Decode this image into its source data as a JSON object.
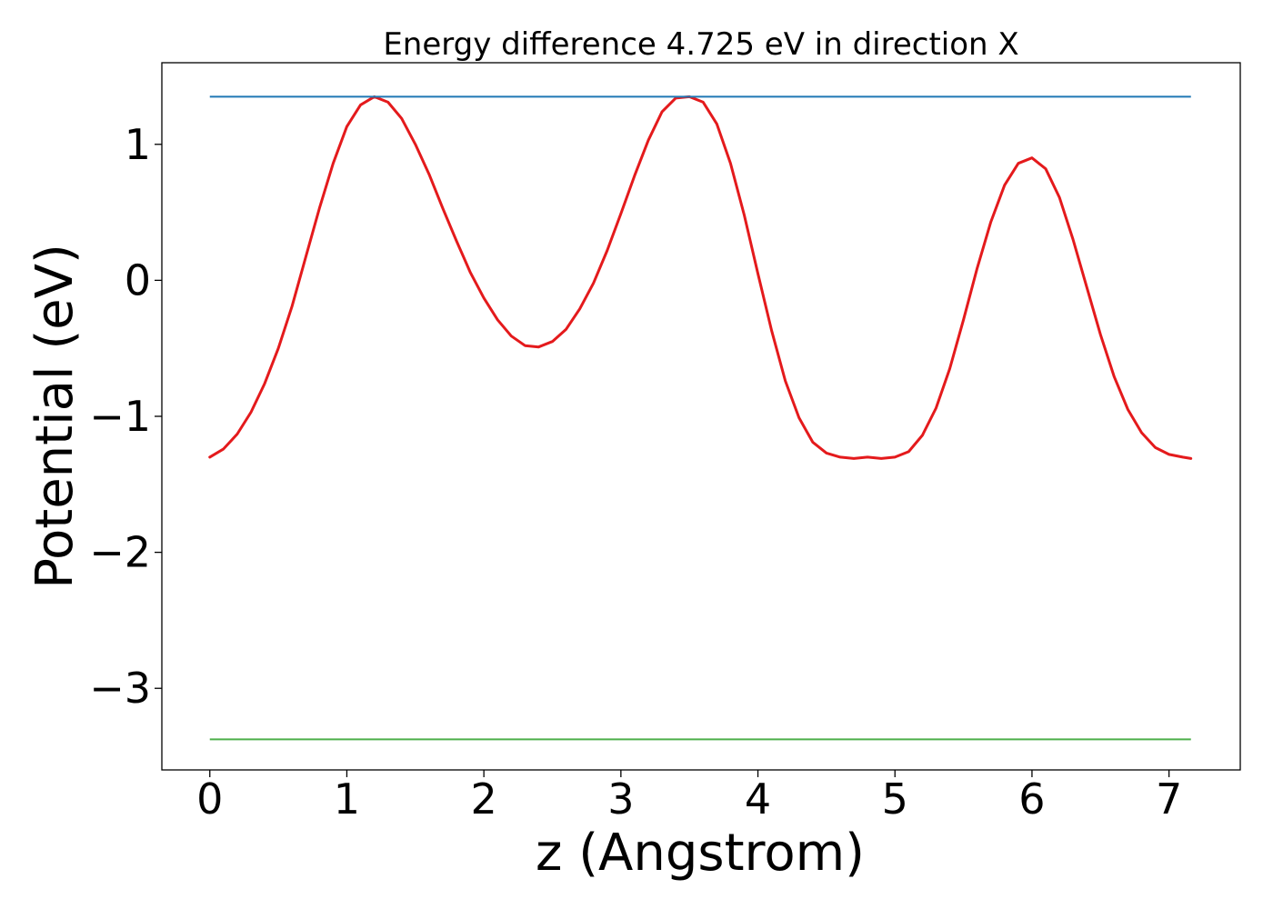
{
  "chart_data": {
    "type": "line",
    "title": "Energy difference 4.725 eV in direction X",
    "xlabel": "z (Angstrom)",
    "ylabel": "Potential (eV)",
    "xlim": [
      -0.35,
      7.52
    ],
    "ylim": [
      -3.6,
      1.6
    ],
    "xticks": [
      0,
      1,
      2,
      3,
      4,
      5,
      6,
      7
    ],
    "xtick_labels": [
      "0",
      "1",
      "2",
      "3",
      "4",
      "5",
      "6",
      "7"
    ],
    "yticks": [
      1,
      0,
      -1,
      -2,
      -3
    ],
    "ytick_labels": [
      "1",
      "0",
      "−1",
      "−2",
      "−3"
    ],
    "grid": false,
    "colors": {
      "potential": "#e41a1c",
      "upper": "#1f77b4",
      "lower": "#4daf4a"
    },
    "series": [
      {
        "kind": "curve",
        "color_key": "potential",
        "x": [
          0,
          0.1,
          0.2,
          0.3,
          0.4,
          0.5,
          0.6,
          0.7,
          0.8,
          0.9,
          1.0,
          1.1,
          1.2,
          1.3,
          1.4,
          1.5,
          1.6,
          1.7,
          1.8,
          1.9,
          2.0,
          2.1,
          2.2,
          2.3,
          2.4,
          2.5,
          2.6,
          2.7,
          2.8,
          2.9,
          3.0,
          3.1,
          3.2,
          3.3,
          3.4,
          3.5,
          3.6,
          3.7,
          3.8,
          3.9,
          4.0,
          4.1,
          4.2,
          4.3,
          4.4,
          4.5,
          4.6,
          4.7,
          4.8,
          4.9,
          5.0,
          5.1,
          5.2,
          5.3,
          5.4,
          5.5,
          5.6,
          5.7,
          5.8,
          5.9,
          6.0,
          6.1,
          6.2,
          6.3,
          6.4,
          6.5,
          6.6,
          6.7,
          6.8,
          6.9,
          7.0,
          7.1,
          7.16
        ],
        "y": [
          -1.3,
          -1.24,
          -1.13,
          -0.97,
          -0.76,
          -0.5,
          -0.19,
          0.17,
          0.53,
          0.86,
          1.13,
          1.29,
          1.35,
          1.31,
          1.19,
          1.0,
          0.78,
          0.53,
          0.29,
          0.06,
          -0.13,
          -0.29,
          -0.41,
          -0.48,
          -0.49,
          -0.45,
          -0.36,
          -0.21,
          -0.02,
          0.22,
          0.49,
          0.77,
          1.03,
          1.24,
          1.34,
          1.35,
          1.31,
          1.15,
          0.86,
          0.48,
          0.05,
          -0.37,
          -0.74,
          -1.01,
          -1.19,
          -1.27,
          -1.3,
          -1.31,
          -1.3,
          -1.31,
          -1.3,
          -1.26,
          -1.14,
          -0.94,
          -0.65,
          -0.29,
          0.09,
          0.43,
          0.7,
          0.86,
          0.9,
          0.82,
          0.61,
          0.3,
          -0.05,
          -0.4,
          -0.71,
          -0.95,
          -1.12,
          -1.23,
          -1.28,
          -1.3,
          -1.31
        ]
      },
      {
        "kind": "hline",
        "color_key": "upper",
        "y": 1.35,
        "x": [
          0,
          7.16
        ]
      },
      {
        "kind": "hline",
        "color_key": "lower",
        "y": -3.375,
        "x": [
          0,
          7.16
        ]
      }
    ]
  }
}
